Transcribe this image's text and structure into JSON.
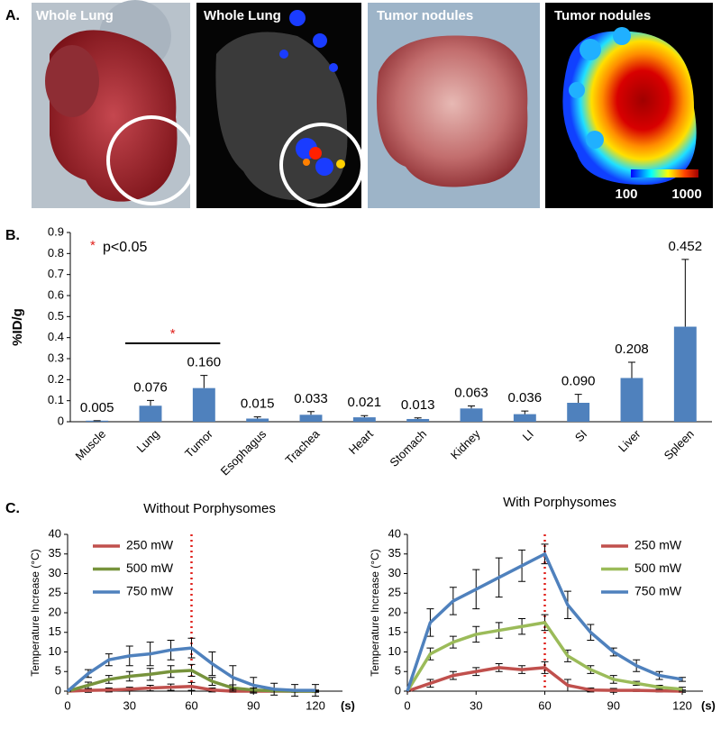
{
  "panels": {
    "a": "A.",
    "b": "B.",
    "c": "C."
  },
  "images": [
    {
      "title": "Whole Lung"
    },
    {
      "title": "Whole Lung"
    },
    {
      "title": "Tumor nodules"
    },
    {
      "title": "Tumor nodules",
      "colorbar": [
        "100",
        "1000"
      ]
    }
  ],
  "chart_data": [
    {
      "type": "bar",
      "ylabel": "%ID/g",
      "categories": [
        "Muscle",
        "Lung",
        "Tumor",
        "Esophagus",
        "Trachea",
        "Heart",
        "Stomach",
        "Kidney",
        "LI",
        "SI",
        "Liver",
        "Spleen"
      ],
      "values": [
        0.005,
        0.076,
        0.16,
        0.015,
        0.033,
        0.021,
        0.013,
        0.063,
        0.036,
        0.09,
        0.208,
        0.452
      ],
      "errors": [
        0,
        0.025,
        0.06,
        0.008,
        0.015,
        0.008,
        0.005,
        0.012,
        0.015,
        0.04,
        0.075,
        0.32
      ],
      "value_labels": [
        "0.005",
        "0.076",
        "0.160",
        "0.015",
        "0.033",
        "0.021",
        "0.013",
        "0.063",
        "0.036",
        "0.090",
        "0.208",
        "0.452"
      ],
      "color": "#4f81bd",
      "ylim": [
        0,
        0.9
      ],
      "yticks": [
        0,
        0.1,
        0.2,
        0.3,
        0.4,
        0.5,
        0.6,
        0.7,
        0.8,
        0.9
      ],
      "significance_marker": "*",
      "significance_note": "p<0.05",
      "marker_color": "#e0201b"
    },
    {
      "type": "line",
      "title": "Without Porphysomes",
      "ylabel": "Temperature Increase (°C)",
      "x_unit": "(s)",
      "x": [
        0,
        10,
        20,
        30,
        40,
        50,
        60,
        70,
        80,
        90,
        100,
        110,
        120
      ],
      "xlim": [
        0,
        120
      ],
      "xticks": [
        0,
        30,
        60,
        90,
        120
      ],
      "ylim": [
        0,
        40
      ],
      "yticks": [
        0,
        5,
        10,
        15,
        20,
        25,
        30,
        35,
        40
      ],
      "legend": "upper left",
      "vline": 60,
      "vline_color": "#e0201b",
      "series": [
        {
          "name": "250 mW",
          "color": "#c0504d",
          "values": [
            0,
            0.2,
            0.3,
            0.5,
            0.8,
            1,
            1.2,
            0.3,
            0,
            0,
            0,
            0,
            0
          ],
          "errors": [
            0,
            0.5,
            0.5,
            0.5,
            0.7,
            0.8,
            1,
            0.5,
            0.3,
            0.2,
            0.2,
            0.2,
            0.2
          ]
        },
        {
          "name": "500 mW",
          "color": "#77933c",
          "values": [
            0,
            1.5,
            3,
            3.8,
            4.3,
            5,
            5.3,
            2.5,
            0.8,
            0.3,
            0.1,
            0,
            0
          ],
          "errors": [
            0,
            0.8,
            1,
            1.2,
            1.5,
            1.5,
            1.5,
            1,
            0.8,
            0.5,
            0.3,
            0.3,
            0.3
          ]
        },
        {
          "name": "750 mW",
          "color": "#4f81bd",
          "values": [
            0,
            4.5,
            8,
            9,
            9.5,
            10.5,
            11,
            7,
            3.5,
            1.5,
            0.5,
            0.2,
            0.2
          ],
          "errors": [
            0,
            1,
            1.5,
            2.5,
            3,
            2.5,
            2.5,
            3,
            3,
            2,
            1.5,
            1.5,
            1.5
          ]
        }
      ]
    },
    {
      "type": "line",
      "title": "With Porphysomes",
      "ylabel": "Temperature Increase (°C)",
      "x_unit": "(s)",
      "x": [
        0,
        10,
        20,
        30,
        40,
        50,
        60,
        70,
        80,
        90,
        100,
        110,
        120
      ],
      "xlim": [
        0,
        120
      ],
      "xticks": [
        0,
        30,
        60,
        90,
        120
      ],
      "ylim": [
        0,
        40
      ],
      "yticks": [
        0,
        5,
        10,
        15,
        20,
        25,
        30,
        35,
        40
      ],
      "legend": "upper right",
      "vline": 60,
      "vline_color": "#e0201b",
      "series": [
        {
          "name": "250 mW",
          "color": "#c0504d",
          "values": [
            0,
            2,
            4,
            5,
            6,
            5.5,
            6,
            1.5,
            0.3,
            0.2,
            0.2,
            0.1,
            0
          ],
          "errors": [
            0,
            1,
            1,
            1,
            1,
            1,
            1.5,
            1.5,
            0.5,
            0.5,
            0.3,
            0.3,
            0.3
          ]
        },
        {
          "name": "500 mW",
          "color": "#9bbb59",
          "values": [
            0,
            9.5,
            12.5,
            14.5,
            15.5,
            16.5,
            17.5,
            9,
            5.5,
            3,
            2,
            1,
            0.5
          ],
          "errors": [
            0,
            1.5,
            1.5,
            2,
            2,
            2,
            2,
            1.5,
            1,
            1,
            0.5,
            0.5,
            0.5
          ]
        },
        {
          "name": "750 mW",
          "color": "#4f81bd",
          "values": [
            0,
            17.5,
            23,
            26,
            29,
            32,
            35,
            22,
            15,
            10,
            6.5,
            4,
            3
          ],
          "errors": [
            0,
            3.5,
            3.5,
            5,
            5,
            4,
            2.5,
            3.5,
            2,
            1,
            1.5,
            1,
            0.5
          ]
        }
      ]
    }
  ]
}
